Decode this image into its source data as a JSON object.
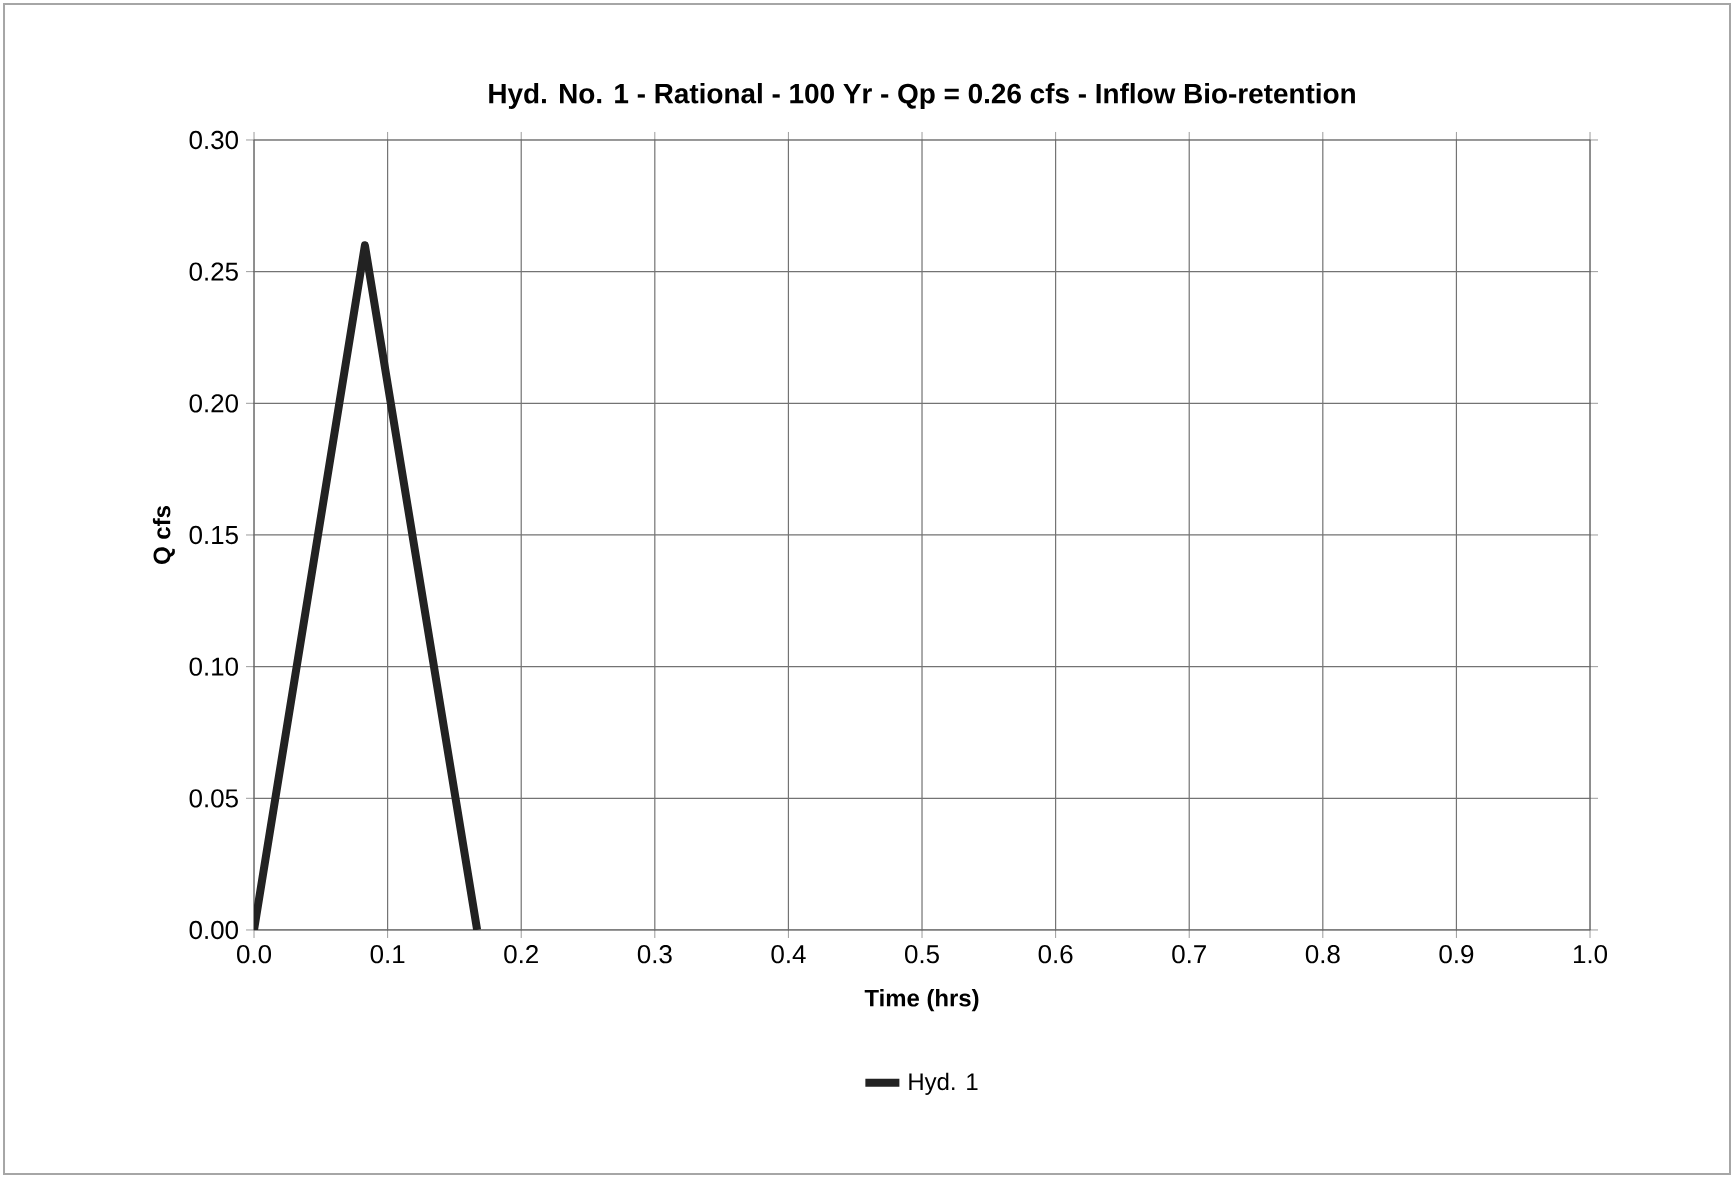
{
  "chart_data": {
    "type": "line",
    "title": "Hyd. No. 1 - Rational - 100 Yr - Qp = 0.26 cfs - Inflow Bio-retention",
    "xlabel": "Time (hrs)",
    "ylabel": "Q cfs",
    "series": [
      {
        "name": "Hyd. 1",
        "color": "#222222",
        "x": [
          0.0,
          0.083,
          0.167
        ],
        "values": [
          0.0,
          0.26,
          0.0
        ]
      }
    ],
    "xlim": [
      0.0,
      1.0
    ],
    "xticks": [
      {
        "value": 0,
        "label": "0.0"
      },
      {
        "value": 0.1,
        "label": "0.1"
      },
      {
        "value": 0.2,
        "label": "0.2"
      },
      {
        "value": 0.3,
        "label": "0.3"
      },
      {
        "value": 0.4,
        "label": "0.4"
      },
      {
        "value": 0.5,
        "label": "0.5"
      },
      {
        "value": 0.6,
        "label": "0.6"
      },
      {
        "value": 0.7,
        "label": "0.7"
      },
      {
        "value": 0.8,
        "label": "0.8"
      },
      {
        "value": 0.9,
        "label": "0.9"
      },
      {
        "value": 1,
        "label": "1.0"
      }
    ],
    "ylim": [
      0.0,
      0.3
    ],
    "yticks": [
      {
        "value": 0,
        "label": "0.00"
      },
      {
        "value": 0.05,
        "label": "0.05"
      },
      {
        "value": 0.1,
        "label": "0.10"
      },
      {
        "value": 0.15,
        "label": "0.15"
      },
      {
        "value": 0.2,
        "label": "0.20"
      },
      {
        "value": 0.25,
        "label": "0.25"
      },
      {
        "value": 0.3,
        "label": "0.30"
      }
    ],
    "grid": true,
    "legend": "bottom",
    "marker": "none",
    "line_style": "solid"
  }
}
